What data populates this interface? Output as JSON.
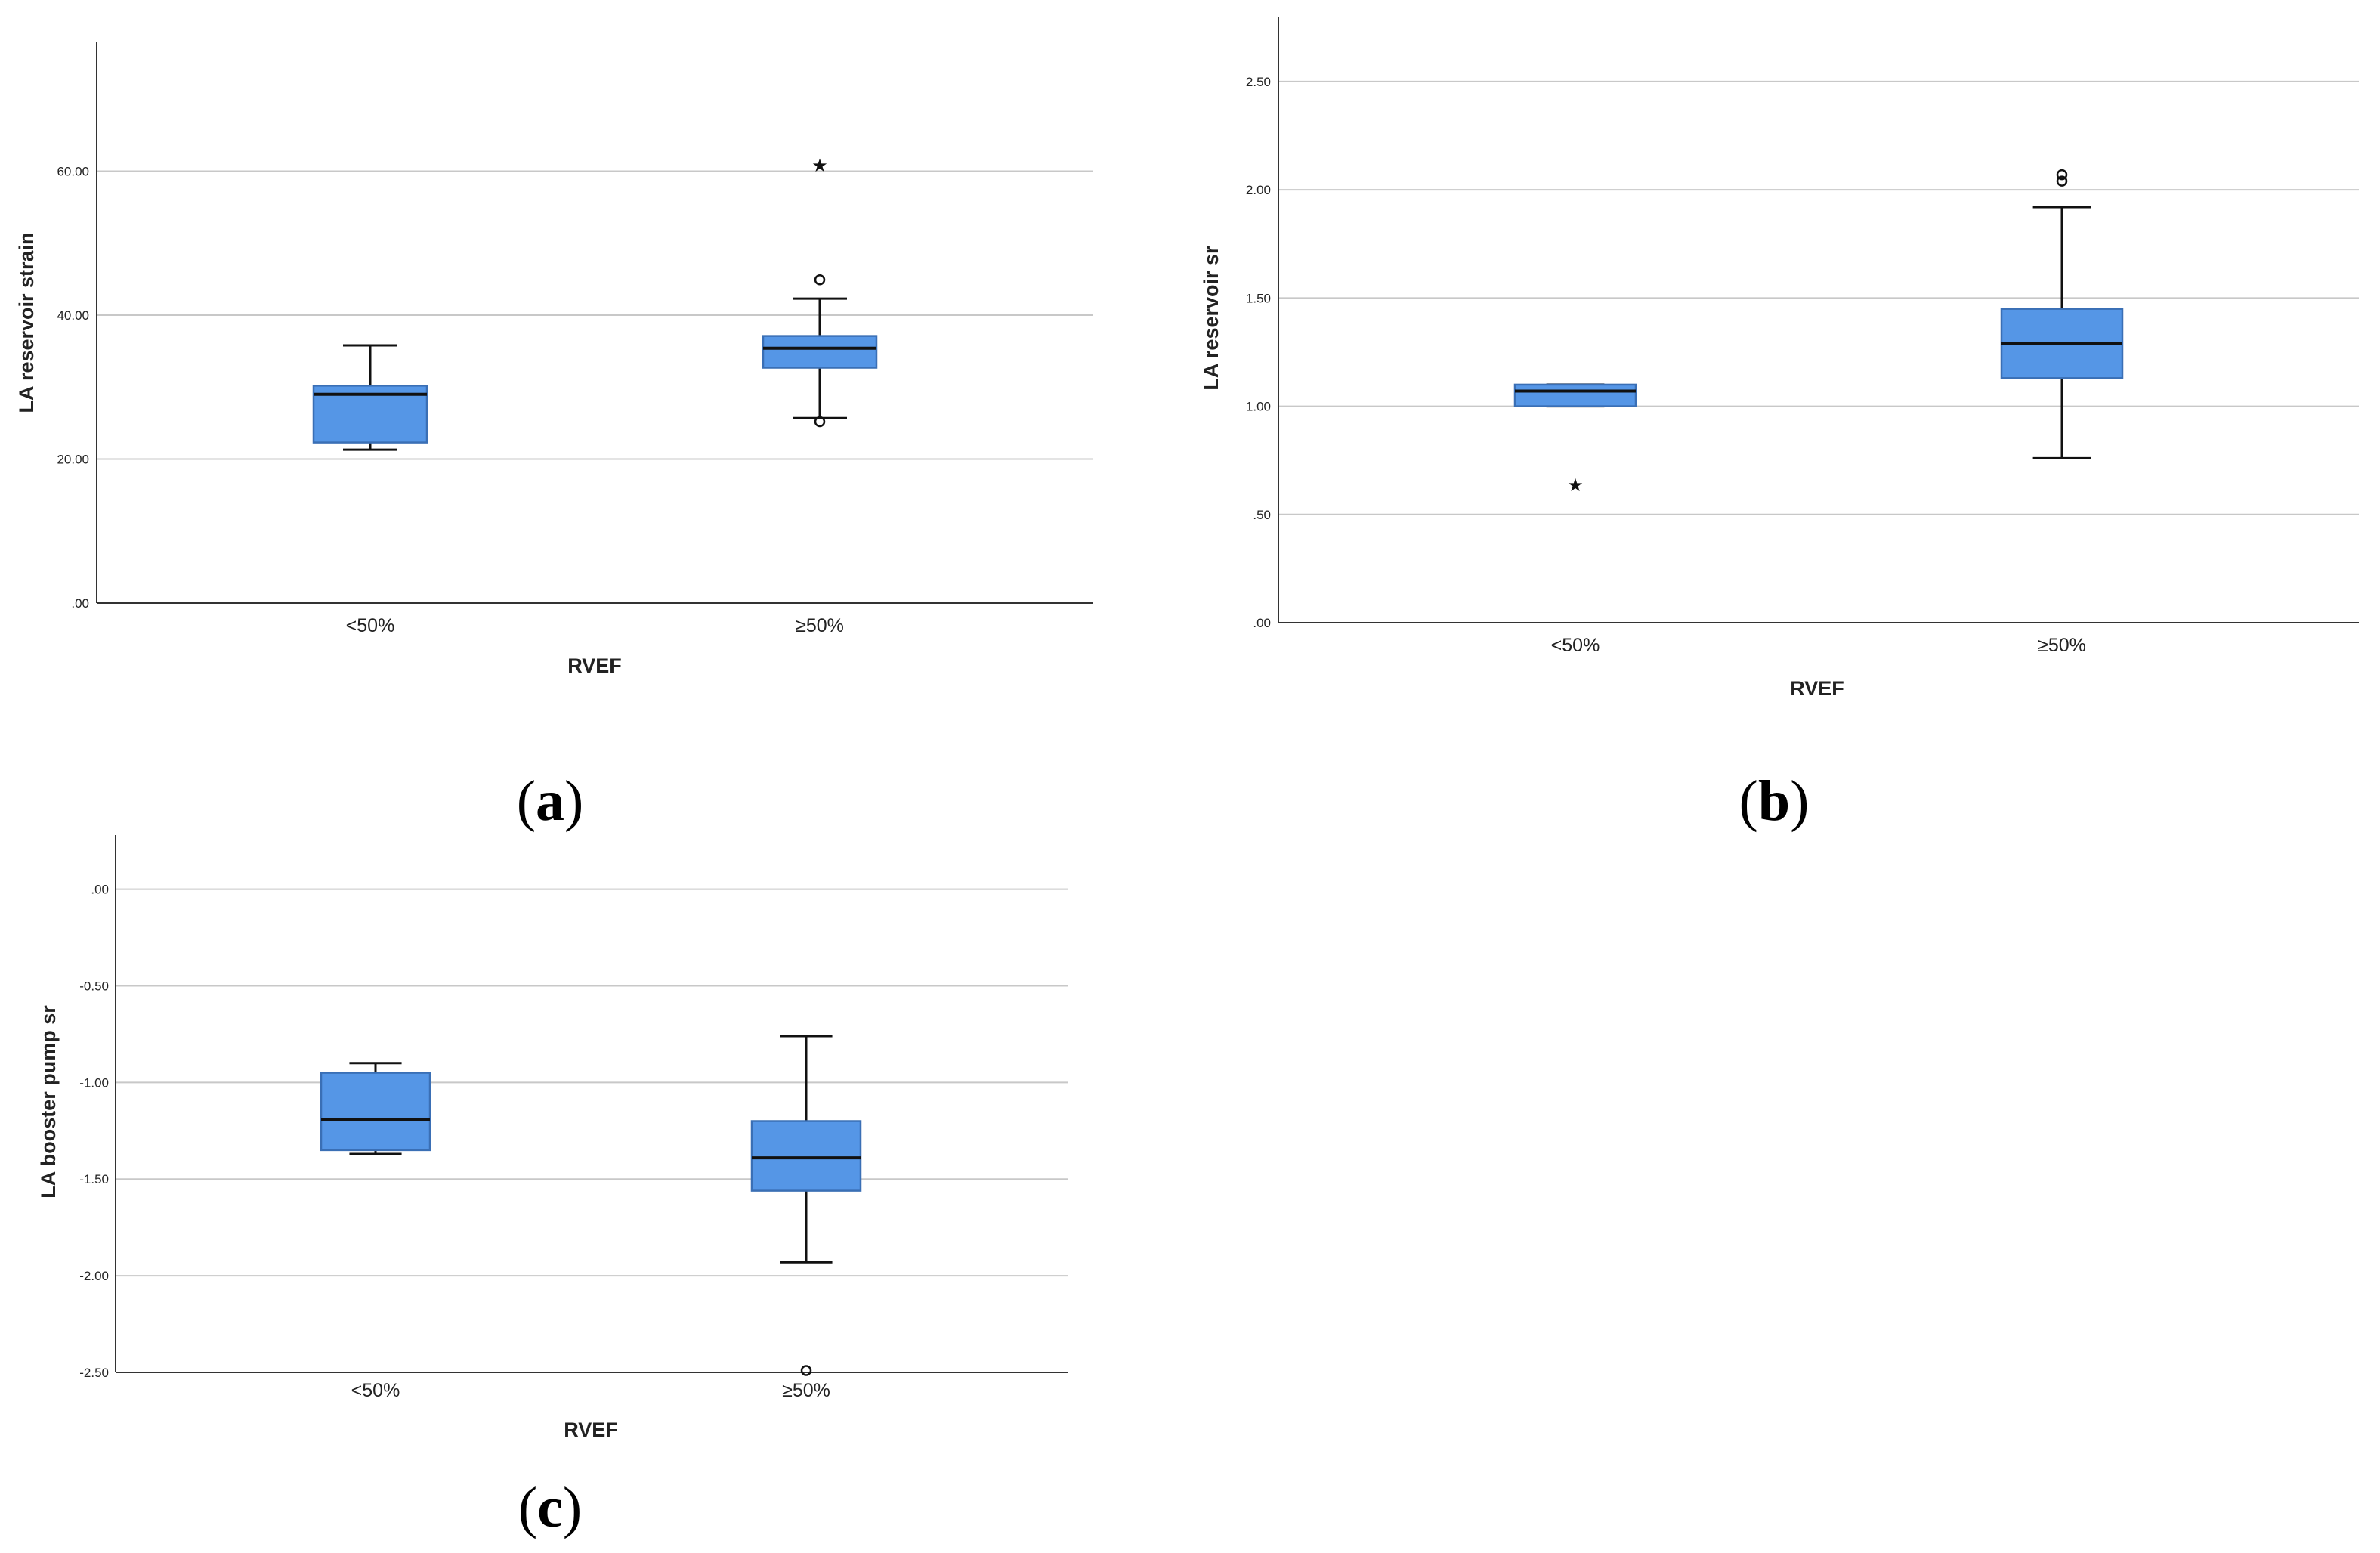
{
  "figure": {
    "colors": {
      "box_fill": "#5596e6",
      "box_stroke": "#3a6fb5",
      "grid": "#c8c8c8",
      "axis": "#333333"
    }
  },
  "chart_data": [
    {
      "id": "a",
      "type": "box",
      "panel_label": "a",
      "xlabel": "RVEF",
      "ylabel": "LA reservoir strain",
      "ylim": [
        0,
        78
      ],
      "yticks": [
        0,
        20,
        40,
        60
      ],
      "ytick_labels": [
        ".00",
        "20.00",
        "40.00",
        "60.00"
      ],
      "categories": [
        "<50%",
        "≥50%"
      ],
      "boxes": [
        {
          "category": "<50%",
          "whisker_low": 21.3,
          "q1": 22.3,
          "median": 29.0,
          "q3": 30.2,
          "whisker_high": 35.8,
          "outliers": [],
          "extremes": []
        },
        {
          "category": "≥50%",
          "whisker_low": 25.7,
          "q1": 32.7,
          "median": 35.4,
          "q3": 37.1,
          "whisker_high": 42.3,
          "outliers": [
            25.2,
            44.9
          ],
          "extremes": [
            61.2
          ]
        }
      ]
    },
    {
      "id": "b",
      "type": "box",
      "panel_label": "b",
      "xlabel": "RVEF",
      "ylabel": "LA reservoir sr",
      "ylim": [
        0,
        2.8
      ],
      "yticks": [
        0,
        0.5,
        1.0,
        1.5,
        2.0,
        2.5
      ],
      "ytick_labels": [
        ".00",
        ".50",
        "1.00",
        "1.50",
        "2.00",
        "2.50"
      ],
      "categories": [
        "<50%",
        "≥50%"
      ],
      "boxes": [
        {
          "category": "<50%",
          "whisker_low": 1.0,
          "q1": 1.0,
          "median": 1.07,
          "q3": 1.1,
          "whisker_high": 1.1,
          "outliers": [],
          "extremes": [
            0.65
          ]
        },
        {
          "category": "≥50%",
          "whisker_low": 0.76,
          "q1": 1.13,
          "median": 1.29,
          "q3": 1.45,
          "whisker_high": 1.92,
          "outliers": [
            2.04,
            2.07
          ],
          "extremes": []
        }
      ]
    },
    {
      "id": "c",
      "type": "box",
      "panel_label": "c",
      "xlabel": "RVEF",
      "ylabel": "LA booster pump sr",
      "ylim": [
        -2.5,
        0.28
      ],
      "yticks": [
        -2.5,
        -2.0,
        -1.5,
        -1.0,
        -0.5,
        0
      ],
      "ytick_labels": [
        "-2.50",
        "-2.00",
        "-1.50",
        "-1.00",
        "-0.50",
        ".00"
      ],
      "categories": [
        "<50%",
        "≥50%"
      ],
      "boxes": [
        {
          "category": "<50%",
          "whisker_low": -1.37,
          "q1": -1.35,
          "median": -1.19,
          "q3": -0.95,
          "whisker_high": -0.9,
          "outliers": [],
          "extremes": []
        },
        {
          "category": "≥50%",
          "whisker_low": -1.93,
          "q1": -1.56,
          "median": -1.39,
          "q3": -1.2,
          "whisker_high": -0.76,
          "outliers": [
            -2.49
          ],
          "extremes": []
        }
      ]
    }
  ]
}
